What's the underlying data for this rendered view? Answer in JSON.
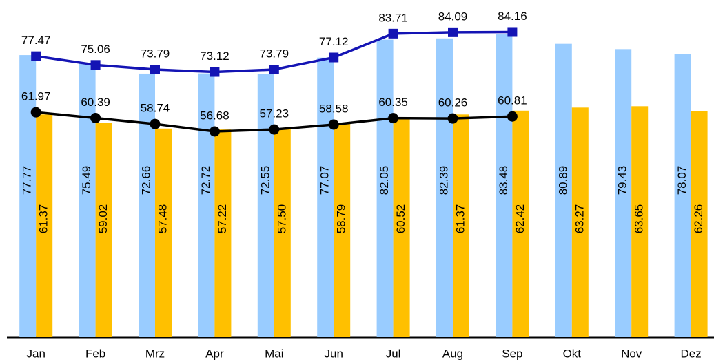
{
  "chart_data": {
    "type": "bar",
    "categories": [
      "Jan",
      "Feb",
      "Mrz",
      "Apr",
      "Mai",
      "Jun",
      "Jul",
      "Aug",
      "Sep",
      "Okt",
      "Nov",
      "Dez"
    ],
    "ylim": [
      0,
      93
    ],
    "series": [
      {
        "type": "bar",
        "color": "#99ccff",
        "values": [
          77.77,
          75.49,
          72.66,
          72.72,
          72.55,
          77.07,
          82.05,
          82.39,
          83.48,
          80.89,
          79.43,
          78.07
        ]
      },
      {
        "type": "bar",
        "color": "#ffc000",
        "values": [
          61.37,
          59.02,
          57.48,
          57.22,
          57.5,
          58.79,
          60.52,
          61.37,
          62.42,
          63.27,
          63.65,
          62.26
        ],
        "value_labels": [
          "61.37",
          "59.02",
          "57.48",
          "57.22",
          "57.50",
          "58.79",
          "60.52",
          "61.37",
          "62.42",
          "63.27",
          "63.65",
          "62.26"
        ]
      },
      {
        "type": "line",
        "color": "#1414b4",
        "marker": "square",
        "values": [
          77.47,
          75.06,
          73.79,
          73.12,
          73.79,
          77.12,
          83.71,
          84.09,
          84.16,
          null,
          null,
          null
        ]
      },
      {
        "type": "line",
        "color": "#000000",
        "marker": "circle",
        "values": [
          61.97,
          60.39,
          58.74,
          56.68,
          57.23,
          58.58,
          60.35,
          60.26,
          60.81,
          null,
          null,
          null
        ]
      }
    ]
  }
}
